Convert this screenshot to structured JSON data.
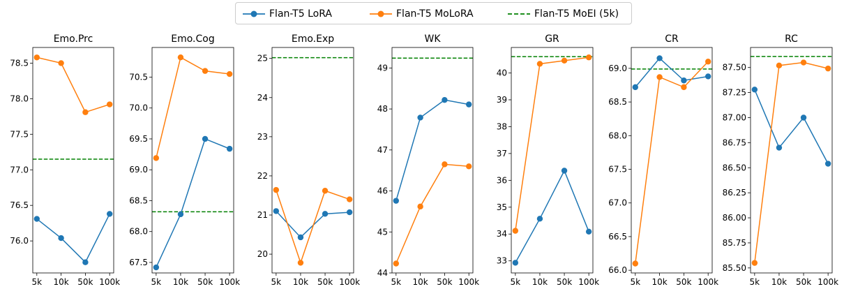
{
  "legend": {
    "items": [
      {
        "label": "Flan-T5 LoRA",
        "color": "#1f77b4",
        "style": "line-marker"
      },
      {
        "label": "Flan-T5 MoLoRA",
        "color": "#ff7f0e",
        "style": "line-marker"
      },
      {
        "label": "Flan-T5 MoEI (5k)",
        "color": "#008000",
        "style": "dashed"
      }
    ]
  },
  "chart_data": [
    {
      "type": "line",
      "title": "Emo.Prc",
      "categories": [
        "5k",
        "10k",
        "50k",
        "100k"
      ],
      "ylim": [
        75.55,
        78.72
      ],
      "yticks": [
        76.0,
        76.5,
        77.0,
        77.5,
        78.0,
        78.5
      ],
      "ytick_labels": [
        "76.0",
        "76.5",
        "77.0",
        "77.5",
        "78.0",
        "78.5"
      ],
      "series": [
        {
          "name": "Flan-T5 LoRA",
          "values": [
            76.31,
            76.04,
            75.7,
            76.38
          ]
        },
        {
          "name": "Flan-T5 MoLoRA",
          "values": [
            78.58,
            78.5,
            77.81,
            77.92
          ]
        }
      ],
      "reference": {
        "name": "Flan-T5 MoEI (5k)",
        "value": 77.15
      }
    },
    {
      "type": "line",
      "title": "Emo.Cog",
      "categories": [
        "5k",
        "10k",
        "50k",
        "100k"
      ],
      "ylim": [
        67.33,
        70.98
      ],
      "yticks": [
        67.5,
        68.0,
        68.5,
        69.0,
        69.5,
        70.0,
        70.5
      ],
      "ytick_labels": [
        "67.5",
        "68.0",
        "68.5",
        "69.0",
        "69.5",
        "70.0",
        "70.5"
      ],
      "series": [
        {
          "name": "Flan-T5 LoRA",
          "values": [
            67.42,
            68.28,
            69.5,
            69.34
          ]
        },
        {
          "name": "Flan-T5 MoLoRA",
          "values": [
            69.19,
            70.82,
            70.6,
            70.55
          ]
        }
      ],
      "reference": {
        "name": "Flan-T5 MoEI (5k)",
        "value": 68.32
      }
    },
    {
      "type": "line",
      "title": "Emo.Exp",
      "categories": [
        "5k",
        "10k",
        "50k",
        "100k"
      ],
      "ylim": [
        19.52,
        25.28
      ],
      "yticks": [
        20,
        21,
        22,
        23,
        24,
        25
      ],
      "ytick_labels": [
        "20",
        "21",
        "22",
        "23",
        "24",
        "25"
      ],
      "series": [
        {
          "name": "Flan-T5 LoRA",
          "values": [
            21.1,
            20.43,
            21.03,
            21.07
          ]
        },
        {
          "name": "Flan-T5 MoLoRA",
          "values": [
            21.64,
            19.78,
            21.62,
            21.4
          ]
        }
      ],
      "reference": {
        "name": "Flan-T5 MoEI (5k)",
        "value": 25.02
      }
    },
    {
      "type": "line",
      "title": "WK",
      "categories": [
        "5k",
        "10k",
        "50k",
        "100k"
      ],
      "ylim": [
        44.0,
        49.5
      ],
      "yticks": [
        44,
        45,
        46,
        47,
        48,
        49
      ],
      "ytick_labels": [
        "44",
        "45",
        "46",
        "47",
        "48",
        "49"
      ],
      "series": [
        {
          "name": "Flan-T5 LoRA",
          "values": [
            45.76,
            47.79,
            48.22,
            48.11
          ]
        },
        {
          "name": "Flan-T5 MoLoRA",
          "values": [
            44.23,
            45.62,
            46.65,
            46.6
          ]
        }
      ],
      "reference": {
        "name": "Flan-T5 MoEI (5k)",
        "value": 49.24
      }
    },
    {
      "type": "line",
      "title": "GR",
      "categories": [
        "5k",
        "10k",
        "50k",
        "100k"
      ],
      "ylim": [
        32.55,
        40.95
      ],
      "yticks": [
        33,
        34,
        35,
        36,
        37,
        38,
        39,
        40
      ],
      "ytick_labels": [
        "33",
        "34",
        "35",
        "36",
        "37",
        "38",
        "39",
        "40"
      ],
      "series": [
        {
          "name": "Flan-T5 LoRA",
          "values": [
            32.93,
            34.57,
            36.36,
            34.09
          ]
        },
        {
          "name": "Flan-T5 MoLoRA",
          "values": [
            34.12,
            40.34,
            40.46,
            40.58
          ]
        }
      ],
      "reference": {
        "name": "Flan-T5 MoEI (5k)",
        "value": 40.61
      }
    },
    {
      "type": "line",
      "title": "CR",
      "categories": [
        "5k",
        "10k",
        "50k",
        "100k"
      ],
      "ylim": [
        65.96,
        69.31
      ],
      "yticks": [
        66.0,
        66.5,
        67.0,
        67.5,
        68.0,
        68.5,
        69.0
      ],
      "ytick_labels": [
        "66.0",
        "66.5",
        "67.0",
        "67.5",
        "68.0",
        "68.5",
        "69.0"
      ],
      "series": [
        {
          "name": "Flan-T5 LoRA",
          "values": [
            68.72,
            69.15,
            68.82,
            68.88
          ]
        },
        {
          "name": "Flan-T5 MoLoRA",
          "values": [
            66.1,
            68.87,
            68.72,
            69.1
          ]
        }
      ],
      "reference": {
        "name": "Flan-T5 MoEI (5k)",
        "value": 68.99
      }
    },
    {
      "type": "line",
      "title": "RC",
      "categories": [
        "5k",
        "10k",
        "50k",
        "100k"
      ],
      "ylim": [
        85.45,
        87.7
      ],
      "yticks": [
        85.5,
        85.75,
        86.0,
        86.25,
        86.5,
        86.75,
        87.0,
        87.25,
        87.5
      ],
      "ytick_labels": [
        "85.50",
        "85.75",
        "86.00",
        "86.25",
        "86.50",
        "86.75",
        "87.00",
        "87.25",
        "87.50"
      ],
      "series": [
        {
          "name": "Flan-T5 LoRA",
          "values": [
            87.28,
            86.7,
            87.0,
            86.54
          ]
        },
        {
          "name": "Flan-T5 MoLoRA",
          "values": [
            85.55,
            87.52,
            87.55,
            87.49
          ]
        }
      ],
      "reference": {
        "name": "Flan-T5 MoEI (5k)",
        "value": 87.61
      }
    }
  ]
}
